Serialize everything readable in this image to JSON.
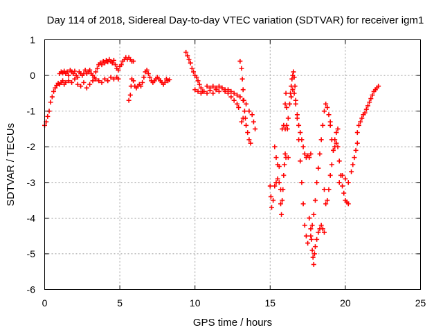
{
  "chart_data": {
    "type": "scatter",
    "title": "Day 114 of 2018, Sidereal Day-to-day VTEC variation (SDTVAR) for receiver igm1",
    "xlabel": "GPS time / hours",
    "ylabel": "SDTVAR / TECUs",
    "xlim": [
      0,
      25
    ],
    "ylim": [
      -6,
      1
    ],
    "x_ticks": [
      "0",
      "5",
      "10",
      "15",
      "20",
      "25"
    ],
    "y_ticks": [
      "1",
      "0",
      "-1",
      "-2",
      "-3",
      "-4",
      "-5",
      "-6"
    ],
    "grid": true,
    "marker": "+",
    "color": "#ff0000",
    "series": [
      {
        "values": [
          [
            0.0,
            -1.4
          ],
          [
            0.1,
            -1.3
          ],
          [
            0.2,
            -1.15
          ],
          [
            0.3,
            -1.0
          ],
          [
            0.4,
            -0.75
          ],
          [
            0.5,
            -0.6
          ],
          [
            0.6,
            -0.45
          ],
          [
            0.7,
            -0.35
          ],
          [
            0.8,
            -0.28
          ],
          [
            0.9,
            -0.22
          ],
          [
            1.0,
            -0.25
          ],
          [
            1.1,
            -0.2
          ],
          [
            1.2,
            -0.15
          ],
          [
            1.3,
            -0.25
          ],
          [
            1.4,
            -0.2
          ],
          [
            1.0,
            0.05
          ],
          [
            1.1,
            0.1
          ],
          [
            1.2,
            0.08
          ],
          [
            1.3,
            0.12
          ],
          [
            1.4,
            0.05
          ],
          [
            1.5,
            0.1
          ],
          [
            1.6,
            0.0
          ],
          [
            1.7,
            0.15
          ],
          [
            1.8,
            0.1
          ],
          [
            1.9,
            0.05
          ],
          [
            2.0,
            0.12
          ],
          [
            2.1,
            0.0
          ],
          [
            2.2,
            -0.05
          ],
          [
            2.3,
            0.1
          ],
          [
            2.4,
            0.05
          ],
          [
            2.5,
            0.0
          ],
          [
            2.6,
            0.05
          ],
          [
            2.7,
            0.15
          ],
          [
            2.8,
            0.05
          ],
          [
            2.9,
            0.1
          ],
          [
            3.0,
            0.15
          ],
          [
            3.1,
            0.05
          ],
          [
            3.2,
            0.0
          ],
          [
            3.3,
            -0.05
          ],
          [
            1.6,
            -0.15
          ],
          [
            1.8,
            -0.2
          ],
          [
            2.0,
            -0.1
          ],
          [
            2.2,
            -0.25
          ],
          [
            2.4,
            -0.3
          ],
          [
            2.6,
            -0.2
          ],
          [
            2.8,
            -0.35
          ],
          [
            3.0,
            -0.25
          ],
          [
            3.2,
            -0.15
          ],
          [
            3.4,
            -0.1
          ],
          [
            3.6,
            -0.15
          ],
          [
            3.8,
            -0.2
          ],
          [
            4.0,
            -0.1
          ],
          [
            4.2,
            -0.15
          ],
          [
            4.4,
            -0.05
          ],
          [
            4.6,
            -0.1
          ],
          [
            4.8,
            -0.05
          ],
          [
            4.9,
            -0.1
          ],
          [
            3.4,
            0.1
          ],
          [
            3.5,
            0.2
          ],
          [
            3.6,
            0.3
          ],
          [
            3.7,
            0.35
          ],
          [
            3.8,
            0.3
          ],
          [
            3.9,
            0.4
          ],
          [
            4.0,
            0.35
          ],
          [
            4.1,
            0.42
          ],
          [
            4.2,
            0.38
          ],
          [
            4.3,
            0.45
          ],
          [
            4.4,
            0.4
          ],
          [
            4.5,
            0.35
          ],
          [
            4.6,
            0.42
          ],
          [
            4.7,
            0.3
          ],
          [
            4.8,
            0.2
          ],
          [
            4.9,
            0.15
          ],
          [
            5.0,
            0.25
          ],
          [
            5.1,
            0.3
          ],
          [
            5.2,
            0.4
          ],
          [
            5.3,
            0.45
          ],
          [
            5.4,
            0.5
          ],
          [
            5.5,
            0.45
          ],
          [
            5.6,
            0.5
          ],
          [
            5.7,
            0.45
          ],
          [
            5.8,
            0.4
          ],
          [
            5.9,
            0.4
          ],
          [
            5.6,
            -0.7
          ],
          [
            5.7,
            -0.55
          ],
          [
            5.75,
            -0.3
          ],
          [
            5.8,
            -0.1
          ],
          [
            5.9,
            -0.15
          ],
          [
            6.0,
            -0.3
          ],
          [
            6.1,
            -0.35
          ],
          [
            6.2,
            -0.3
          ],
          [
            6.3,
            -0.25
          ],
          [
            6.4,
            -0.3
          ],
          [
            6.5,
            -0.2
          ],
          [
            6.6,
            -0.05
          ],
          [
            6.7,
            0.1
          ],
          [
            6.8,
            0.15
          ],
          [
            6.9,
            0.05
          ],
          [
            7.0,
            -0.05
          ],
          [
            7.1,
            -0.15
          ],
          [
            7.2,
            -0.2
          ],
          [
            7.3,
            -0.15
          ],
          [
            7.4,
            -0.1
          ],
          [
            7.5,
            -0.05
          ],
          [
            7.6,
            -0.1
          ],
          [
            7.7,
            -0.15
          ],
          [
            7.8,
            -0.2
          ],
          [
            7.9,
            -0.25
          ],
          [
            8.0,
            -0.2
          ],
          [
            8.1,
            -0.1
          ],
          [
            8.2,
            -0.15
          ],
          [
            8.3,
            -0.12
          ],
          [
            9.4,
            0.65
          ],
          [
            9.5,
            0.55
          ],
          [
            9.6,
            0.45
          ],
          [
            9.7,
            0.35
          ],
          [
            9.8,
            0.2
          ],
          [
            9.9,
            0.1
          ],
          [
            10.0,
            0.0
          ],
          [
            10.1,
            -0.05
          ],
          [
            10.2,
            -0.15
          ],
          [
            10.3,
            -0.25
          ],
          [
            10.4,
            -0.35
          ],
          [
            10.5,
            -0.45
          ],
          [
            10.0,
            -0.4
          ],
          [
            10.2,
            -0.45
          ],
          [
            10.4,
            -0.5
          ],
          [
            10.6,
            -0.45
          ],
          [
            10.8,
            -0.5
          ],
          [
            11.0,
            -0.42
          ],
          [
            11.2,
            -0.5
          ],
          [
            11.4,
            -0.4
          ],
          [
            11.6,
            -0.45
          ],
          [
            11.8,
            -0.35
          ],
          [
            12.0,
            -0.45
          ],
          [
            12.2,
            -0.4
          ],
          [
            12.4,
            -0.45
          ],
          [
            12.6,
            -0.5
          ],
          [
            12.8,
            -0.55
          ],
          [
            13.0,
            -0.6
          ],
          [
            10.8,
            -0.3
          ],
          [
            11.0,
            -0.35
          ],
          [
            11.2,
            -0.3
          ],
          [
            11.4,
            -0.35
          ],
          [
            11.6,
            -0.3
          ],
          [
            11.8,
            -0.35
          ],
          [
            12.0,
            -0.4
          ],
          [
            12.2,
            -0.5
          ],
          [
            12.4,
            -0.6
          ],
          [
            12.6,
            -0.7
          ],
          [
            12.8,
            -0.8
          ],
          [
            12.9,
            -0.9
          ],
          [
            13.0,
            0.4
          ],
          [
            13.1,
            0.2
          ],
          [
            13.15,
            -0.1
          ],
          [
            13.2,
            -0.4
          ],
          [
            13.25,
            -0.7
          ],
          [
            13.3,
            -1.0
          ],
          [
            13.35,
            -1.2
          ],
          [
            13.4,
            -1.4
          ],
          [
            13.5,
            -1.6
          ],
          [
            13.6,
            -1.8
          ],
          [
            13.7,
            -1.9
          ],
          [
            13.2,
            -0.7
          ],
          [
            13.4,
            -0.8
          ],
          [
            13.6,
            -1.0
          ],
          [
            13.8,
            -1.1
          ],
          [
            13.9,
            -1.3
          ],
          [
            14.0,
            -1.5
          ],
          [
            13.1,
            -1.3
          ],
          [
            13.2,
            -1.2
          ],
          [
            15.0,
            -3.1
          ],
          [
            15.05,
            -3.4
          ],
          [
            15.1,
            -3.7
          ],
          [
            15.2,
            -3.5
          ],
          [
            15.3,
            -3.1
          ],
          [
            15.4,
            -3.0
          ],
          [
            15.5,
            -2.9
          ],
          [
            15.6,
            -3.0
          ],
          [
            15.7,
            -3.2
          ],
          [
            15.3,
            -2.0
          ],
          [
            15.4,
            -2.3
          ],
          [
            15.5,
            -2.5
          ],
          [
            15.6,
            -2.55
          ],
          [
            15.7,
            -3.6
          ],
          [
            15.75,
            -3.9
          ],
          [
            15.8,
            -3.5
          ],
          [
            15.85,
            -3.2
          ],
          [
            15.9,
            -2.8
          ],
          [
            15.95,
            -2.5
          ],
          [
            16.0,
            -2.2
          ],
          [
            16.05,
            -2.3
          ],
          [
            15.8,
            -1.5
          ],
          [
            15.9,
            -1.4
          ],
          [
            16.0,
            -1.5
          ],
          [
            16.1,
            -1.4
          ],
          [
            16.0,
            -0.8
          ],
          [
            16.05,
            -0.5
          ],
          [
            16.1,
            -0.9
          ],
          [
            16.15,
            -1.5
          ],
          [
            16.2,
            -2.3
          ],
          [
            16.2,
            -1.2
          ],
          [
            16.3,
            -0.8
          ],
          [
            16.35,
            -0.5
          ],
          [
            16.4,
            -0.3
          ],
          [
            16.45,
            -0.1
          ],
          [
            16.5,
            0.0
          ],
          [
            16.55,
            0.1
          ],
          [
            16.6,
            -0.05
          ],
          [
            16.65,
            -0.3
          ],
          [
            16.7,
            -0.7
          ],
          [
            16.8,
            -1.2
          ],
          [
            16.9,
            -1.8
          ],
          [
            17.0,
            -2.4
          ],
          [
            17.1,
            -3.0
          ],
          [
            17.2,
            -3.6
          ],
          [
            17.3,
            -4.2
          ],
          [
            17.4,
            -4.5
          ],
          [
            17.5,
            -4.7
          ],
          [
            16.4,
            -0.6
          ],
          [
            16.5,
            -0.4
          ],
          [
            16.6,
            -0.5
          ],
          [
            16.7,
            -0.8
          ],
          [
            16.8,
            -1.1
          ],
          [
            16.9,
            -1.4
          ],
          [
            17.0,
            -1.6
          ],
          [
            17.1,
            -1.8
          ],
          [
            17.2,
            -2.0
          ],
          [
            17.3,
            -2.2
          ],
          [
            17.4,
            -2.3
          ],
          [
            17.5,
            -2.25
          ],
          [
            17.6,
            -2.3
          ],
          [
            17.7,
            -2.2
          ],
          [
            17.6,
            -4.0
          ],
          [
            17.7,
            -4.3
          ],
          [
            17.75,
            -4.6
          ],
          [
            17.8,
            -4.9
          ],
          [
            17.85,
            -5.1
          ],
          [
            17.9,
            -5.3
          ],
          [
            17.95,
            -5.0
          ],
          [
            18.0,
            -4.8
          ],
          [
            18.1,
            -4.6
          ],
          [
            18.2,
            -4.4
          ],
          [
            18.3,
            -4.3
          ],
          [
            18.4,
            -4.2
          ],
          [
            18.5,
            -4.3
          ],
          [
            18.6,
            -4.4
          ],
          [
            17.7,
            -4.5
          ],
          [
            17.8,
            -4.2
          ],
          [
            17.9,
            -3.9
          ],
          [
            18.0,
            -3.5
          ],
          [
            18.1,
            -3.0
          ],
          [
            18.2,
            -2.6
          ],
          [
            18.3,
            -2.2
          ],
          [
            18.4,
            -1.8
          ],
          [
            18.5,
            -1.4
          ],
          [
            18.6,
            -1.0
          ],
          [
            18.7,
            -0.8
          ],
          [
            18.8,
            -0.9
          ],
          [
            18.9,
            -1.1
          ],
          [
            19.0,
            -1.3
          ],
          [
            18.6,
            -3.2
          ],
          [
            18.7,
            -3.6
          ],
          [
            18.8,
            -3.5
          ],
          [
            18.9,
            -3.2
          ],
          [
            19.0,
            -2.8
          ],
          [
            19.1,
            -2.5
          ],
          [
            19.2,
            -2.1
          ],
          [
            19.3,
            -1.8
          ],
          [
            19.4,
            -1.6
          ],
          [
            19.5,
            -1.5
          ],
          [
            19.0,
            -1.4
          ],
          [
            19.1,
            -1.8
          ],
          [
            19.2,
            -2.1
          ],
          [
            19.3,
            -2.0
          ],
          [
            19.4,
            -1.9
          ],
          [
            19.5,
            -2.0
          ],
          [
            19.6,
            -2.4
          ],
          [
            19.7,
            -2.8
          ],
          [
            19.8,
            -3.1
          ],
          [
            19.9,
            -3.3
          ],
          [
            20.0,
            -3.5
          ],
          [
            20.1,
            -3.55
          ],
          [
            20.2,
            -3.6
          ],
          [
            19.6,
            -3.0
          ],
          [
            19.8,
            -2.8
          ],
          [
            20.0,
            -2.9
          ],
          [
            20.2,
            -3.0
          ],
          [
            20.4,
            -2.7
          ],
          [
            20.5,
            -2.5
          ],
          [
            20.6,
            -2.3
          ],
          [
            20.7,
            -2.1
          ],
          [
            20.8,
            -1.9
          ],
          [
            20.8,
            -1.6
          ],
          [
            20.9,
            -1.4
          ],
          [
            21.0,
            -1.3
          ],
          [
            21.1,
            -1.2
          ],
          [
            21.2,
            -1.1
          ],
          [
            21.3,
            -1.05
          ],
          [
            21.4,
            -0.95
          ],
          [
            21.5,
            -0.85
          ],
          [
            21.6,
            -0.75
          ],
          [
            21.7,
            -0.65
          ],
          [
            21.8,
            -0.55
          ],
          [
            21.9,
            -0.45
          ],
          [
            22.0,
            -0.4
          ],
          [
            22.1,
            -0.35
          ],
          [
            22.2,
            -0.3
          ]
        ]
      }
    ]
  }
}
